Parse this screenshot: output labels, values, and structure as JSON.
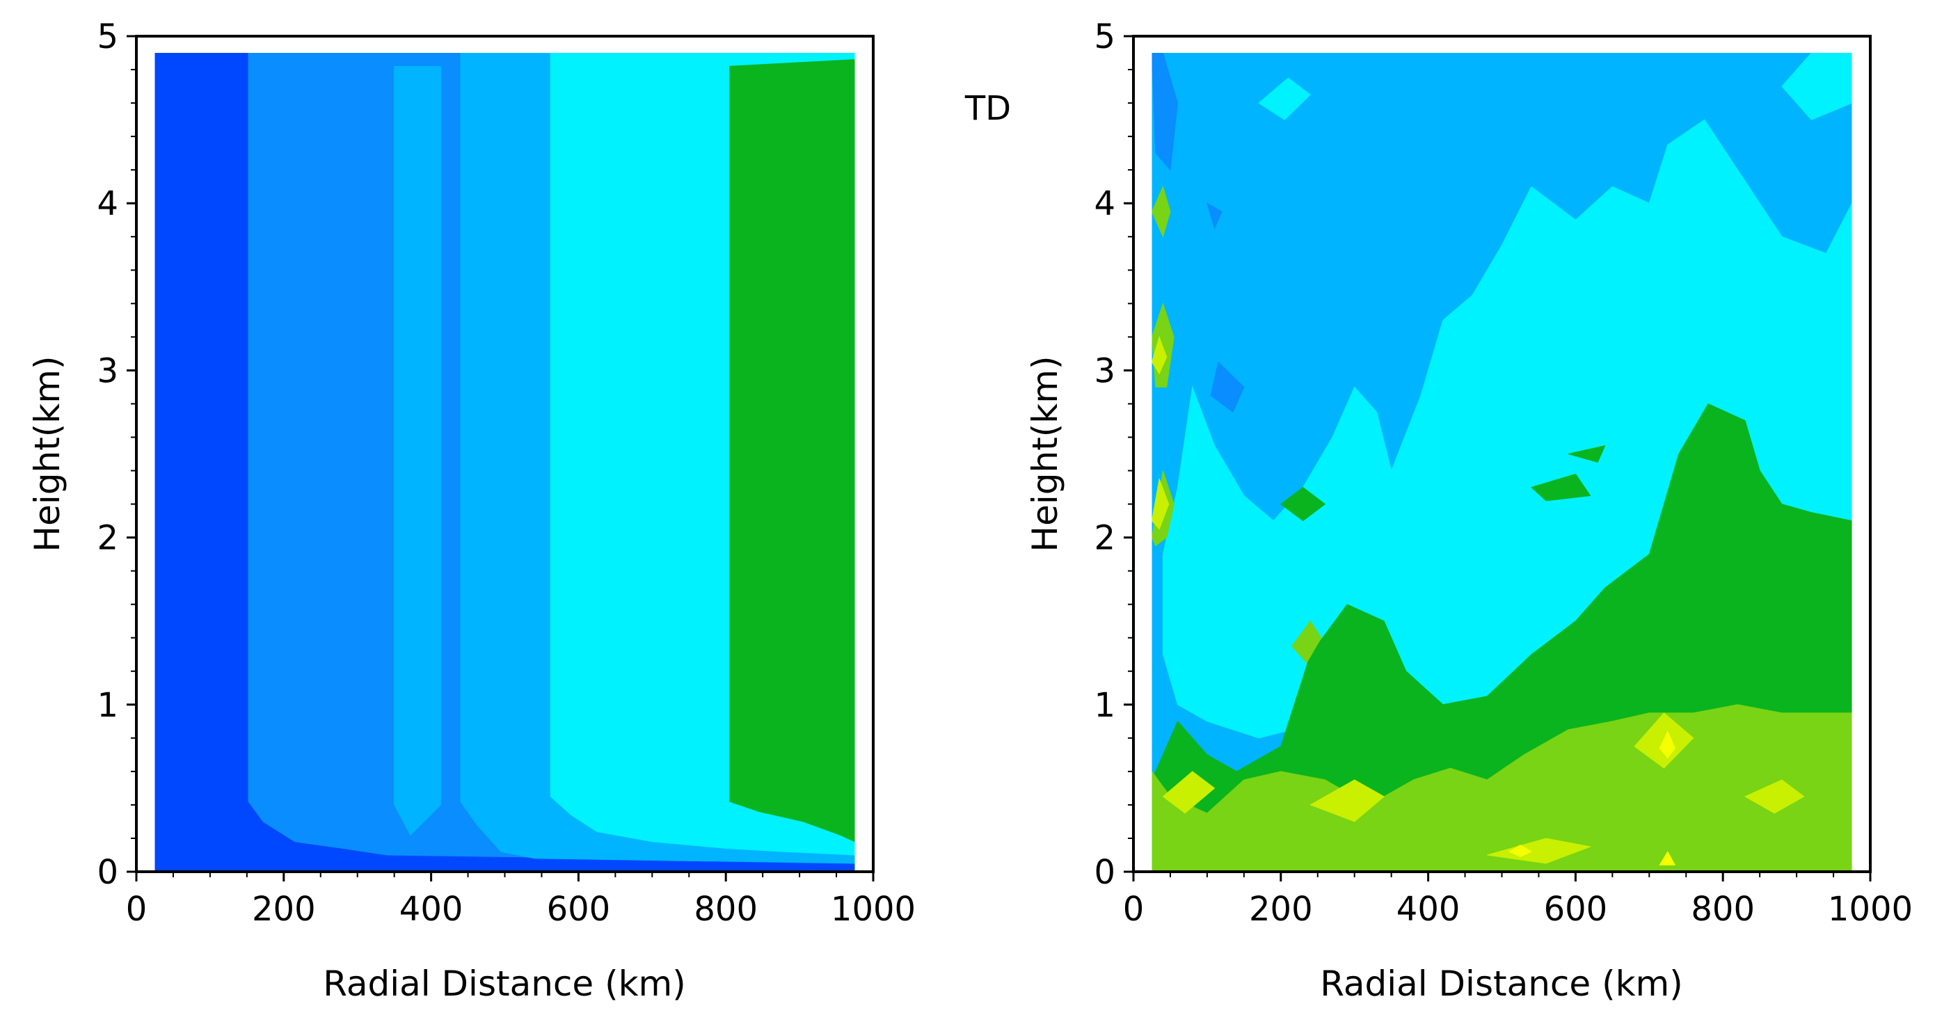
{
  "chart_data": [
    {
      "type": "heatmap",
      "panel": "left",
      "title": "",
      "tag": "",
      "xlabel": "Radial Distance (km)",
      "ylabel": "Height(km)",
      "xlim": [
        0,
        1000
      ],
      "ylim": [
        0,
        5
      ],
      "x_ticks": [
        "0",
        "200",
        "400",
        "600",
        "800",
        "1000"
      ],
      "y_ticks": [
        "0",
        "1",
        "2",
        "3",
        "4",
        "5"
      ],
      "data_extent": {
        "x": [
          25,
          975
        ],
        "y": [
          0,
          4.9
        ]
      },
      "colors": [
        "#0048ff",
        "#0a8dff",
        "#00b4ff",
        "#00f2ff",
        "#0ab41e"
      ],
      "regions": [
        {
          "level": 0,
          "poly": [
            [
              25,
              0
            ],
            [
              975,
              0
            ],
            [
              975,
              4.9
            ],
            [
              25,
              4.9
            ]
          ]
        },
        {
          "level": 1,
          "poly": [
            [
              152,
              4.82
            ],
            [
              152,
              0.42
            ],
            [
              172,
              0.3
            ],
            [
              215,
              0.18
            ],
            [
              280,
              0.14
            ],
            [
              340,
              0.1
            ],
            [
              975,
              0.06
            ],
            [
              975,
              4.9
            ],
            [
              152,
              4.9
            ]
          ]
        },
        {
          "level": 2,
          "poly": [
            [
              350,
              4.82
            ],
            [
              350,
              0.4
            ],
            [
              372,
              0.22
            ],
            [
              413,
              0.4
            ],
            [
              413,
              4.82
            ]
          ]
        },
        {
          "level": 2,
          "poly": [
            [
              440,
              4.82
            ],
            [
              440,
              0.42
            ],
            [
              462,
              0.28
            ],
            [
              495,
              0.12
            ],
            [
              540,
              0.08
            ],
            [
              975,
              0.05
            ],
            [
              975,
              4.9
            ],
            [
              440,
              4.9
            ]
          ]
        },
        {
          "level": 3,
          "poly": [
            [
              562,
              4.82
            ],
            [
              562,
              0.45
            ],
            [
              590,
              0.34
            ],
            [
              625,
              0.24
            ],
            [
              700,
              0.18
            ],
            [
              800,
              0.14
            ],
            [
              880,
              0.12
            ],
            [
              975,
              0.1
            ],
            [
              975,
              4.9
            ],
            [
              562,
              4.9
            ]
          ]
        },
        {
          "level": 4,
          "poly": [
            [
              805,
              4.82
            ],
            [
              805,
              0.42
            ],
            [
              845,
              0.36
            ],
            [
              905,
              0.3
            ],
            [
              955,
              0.22
            ],
            [
              975,
              0.18
            ],
            [
              975,
              4.86
            ]
          ]
        }
      ]
    },
    {
      "type": "heatmap",
      "panel": "right",
      "title": "",
      "tag": "TD",
      "xlabel": "Radial Distance (km)",
      "ylabel": "Height(km)",
      "xlim": [
        0,
        1000
      ],
      "ylim": [
        0,
        5
      ],
      "x_ticks": [
        "0",
        "200",
        "400",
        "600",
        "800",
        "1000"
      ],
      "y_ticks": [
        "0",
        "1",
        "2",
        "3",
        "4",
        "5"
      ],
      "data_extent": {
        "x": [
          25,
          975
        ],
        "y": [
          0,
          4.9
        ]
      },
      "colors": [
        "#0048ff",
        "#0a8dff",
        "#00b4ff",
        "#00f2ff",
        "#0ab41e",
        "#78d414",
        "#c8f000",
        "#f5ff00"
      ],
      "regions": [
        {
          "level": 2,
          "poly": [
            [
              25,
              0
            ],
            [
              975,
              0
            ],
            [
              975,
              4.9
            ],
            [
              25,
              4.9
            ]
          ]
        },
        {
          "level": 3,
          "poly": [
            [
              975,
              4.0
            ],
            [
              940,
              3.7
            ],
            [
              880,
              3.8
            ],
            [
              820,
              4.2
            ],
            [
              775,
              4.5
            ],
            [
              725,
              4.35
            ],
            [
              700,
              4.0
            ],
            [
              650,
              4.1
            ],
            [
              600,
              3.9
            ],
            [
              540,
              4.1
            ],
            [
              500,
              3.75
            ],
            [
              460,
              3.45
            ],
            [
              420,
              3.3
            ],
            [
              390,
              2.85
            ],
            [
              350,
              2.4
            ],
            [
              330,
              2.75
            ],
            [
              300,
              2.9
            ],
            [
              270,
              2.6
            ],
            [
              230,
              2.3
            ],
            [
              190,
              2.1
            ],
            [
              150,
              2.25
            ],
            [
              110,
              2.55
            ],
            [
              80,
              2.9
            ],
            [
              60,
              2.3
            ],
            [
              40,
              1.9
            ],
            [
              40,
              1.3
            ],
            [
              60,
              1.0
            ],
            [
              100,
              0.9
            ],
            [
              170,
              0.8
            ],
            [
              260,
              0.9
            ],
            [
              330,
              1.0
            ],
            [
              380,
              0.85
            ],
            [
              420,
              0.95
            ],
            [
              470,
              1.0
            ],
            [
              530,
              0.95
            ],
            [
              600,
              1.05
            ],
            [
              680,
              1.1
            ],
            [
              760,
              1.2
            ],
            [
              830,
              1.3
            ],
            [
              900,
              1.5
            ],
            [
              975,
              1.6
            ]
          ]
        },
        {
          "level": 3,
          "poly": [
            [
              975,
              4.9
            ],
            [
              975,
              4.6
            ],
            [
              920,
              4.5
            ],
            [
              880,
              4.7
            ],
            [
              920,
              4.9
            ]
          ]
        },
        {
          "level": 3,
          "poly": [
            [
              170,
              4.6
            ],
            [
              210,
              4.75
            ],
            [
              240,
              4.65
            ],
            [
              205,
              4.5
            ]
          ]
        },
        {
          "level": 1,
          "poly": [
            [
              40,
              4.9
            ],
            [
              60,
              4.6
            ],
            [
              50,
              4.2
            ],
            [
              30,
              4.3
            ],
            [
              25,
              4.9
            ]
          ]
        },
        {
          "level": 1,
          "poly": [
            [
              115,
              3.05
            ],
            [
              150,
              2.9
            ],
            [
              135,
              2.75
            ],
            [
              105,
              2.85
            ]
          ]
        },
        {
          "level": 1,
          "poly": [
            [
              100,
              4.0
            ],
            [
              120,
              3.95
            ],
            [
              110,
              3.85
            ]
          ]
        },
        {
          "level": 4,
          "poly": [
            [
              25,
              0.55
            ],
            [
              60,
              0.9
            ],
            [
              100,
              0.7
            ],
            [
              140,
              0.6
            ],
            [
              200,
              0.75
            ],
            [
              240,
              1.3
            ],
            [
              290,
              1.6
            ],
            [
              340,
              1.5
            ],
            [
              370,
              1.2
            ],
            [
              420,
              1.0
            ],
            [
              480,
              1.05
            ],
            [
              540,
              1.3
            ],
            [
              600,
              1.5
            ],
            [
              640,
              1.7
            ],
            [
              700,
              1.9
            ],
            [
              740,
              2.5
            ],
            [
              780,
              2.8
            ],
            [
              830,
              2.7
            ],
            [
              850,
              2.4
            ],
            [
              880,
              2.2
            ],
            [
              920,
              2.15
            ],
            [
              975,
              2.1
            ],
            [
              975,
              0
            ],
            [
              25,
              0
            ]
          ]
        },
        {
          "level": 4,
          "poly": [
            [
              200,
              2.2
            ],
            [
              230,
              2.3
            ],
            [
              260,
              2.2
            ],
            [
              230,
              2.1
            ]
          ]
        },
        {
          "level": 4,
          "poly": [
            [
              590,
              2.5
            ],
            [
              640,
              2.55
            ],
            [
              630,
              2.45
            ]
          ]
        },
        {
          "level": 4,
          "poly": [
            [
              540,
              2.3
            ],
            [
              600,
              2.38
            ],
            [
              620,
              2.25
            ],
            [
              560,
              2.22
            ]
          ]
        },
        {
          "level": 5,
          "poly": [
            [
              25,
              0.05
            ],
            [
              25,
              0.6
            ],
            [
              50,
              0.45
            ],
            [
              100,
              0.35
            ],
            [
              150,
              0.55
            ],
            [
              200,
              0.6
            ],
            [
              260,
              0.55
            ],
            [
              320,
              0.4
            ],
            [
              380,
              0.55
            ],
            [
              430,
              0.62
            ],
            [
              480,
              0.55
            ],
            [
              530,
              0.7
            ],
            [
              590,
              0.85
            ],
            [
              650,
              0.9
            ],
            [
              700,
              0.95
            ],
            [
              760,
              0.95
            ],
            [
              820,
              1.0
            ],
            [
              880,
              0.95
            ],
            [
              975,
              0.95
            ],
            [
              975,
              0
            ],
            [
              25,
              0
            ]
          ]
        },
        {
          "level": 5,
          "poly": [
            [
              25,
              3.2
            ],
            [
              40,
              3.4
            ],
            [
              55,
              3.2
            ],
            [
              45,
              2.9
            ],
            [
              30,
              2.9
            ]
          ]
        },
        {
          "level": 5,
          "poly": [
            [
              25,
              2.0
            ],
            [
              40,
              2.4
            ],
            [
              55,
              2.2
            ],
            [
              45,
              2.0
            ],
            [
              30,
              1.95
            ]
          ]
        },
        {
          "level": 5,
          "poly": [
            [
              25,
              3.95
            ],
            [
              40,
              4.1
            ],
            [
              50,
              3.95
            ],
            [
              40,
              3.8
            ]
          ]
        },
        {
          "level": 5,
          "poly": [
            [
              215,
              1.35
            ],
            [
              240,
              1.5
            ],
            [
              255,
              1.4
            ],
            [
              235,
              1.25
            ]
          ]
        },
        {
          "level": 6,
          "poly": [
            [
              40,
              0.45
            ],
            [
              80,
              0.6
            ],
            [
              110,
              0.5
            ],
            [
              70,
              0.35
            ]
          ]
        },
        {
          "level": 6,
          "poly": [
            [
              240,
              0.4
            ],
            [
              300,
              0.55
            ],
            [
              340,
              0.45
            ],
            [
              300,
              0.3
            ]
          ]
        },
        {
          "level": 6,
          "poly": [
            [
              480,
              0.1
            ],
            [
              560,
              0.2
            ],
            [
              620,
              0.15
            ],
            [
              560,
              0.05
            ]
          ]
        },
        {
          "level": 6,
          "poly": [
            [
              680,
              0.75
            ],
            [
              720,
              0.95
            ],
            [
              760,
              0.8
            ],
            [
              720,
              0.62
            ]
          ]
        },
        {
          "level": 6,
          "poly": [
            [
              830,
              0.45
            ],
            [
              880,
              0.55
            ],
            [
              910,
              0.45
            ],
            [
              870,
              0.35
            ]
          ]
        },
        {
          "level": 6,
          "poly": [
            [
              25,
              2.1
            ],
            [
              35,
              2.35
            ],
            [
              48,
              2.2
            ],
            [
              35,
              2.05
            ]
          ]
        },
        {
          "level": 6,
          "poly": [
            [
              25,
              3.05
            ],
            [
              35,
              3.2
            ],
            [
              45,
              3.08
            ],
            [
              35,
              2.98
            ]
          ]
        },
        {
          "level": 7,
          "poly": [
            [
              714,
              0.74
            ],
            [
              725,
              0.84
            ],
            [
              735,
              0.74
            ],
            [
              725,
              0.68
            ]
          ]
        },
        {
          "level": 7,
          "poly": [
            [
              714,
              0.04
            ],
            [
              725,
              0.12
            ],
            [
              735,
              0.04
            ]
          ]
        },
        {
          "level": 7,
          "poly": [
            [
              510,
              0.12
            ],
            [
              525,
              0.16
            ],
            [
              540,
              0.12
            ],
            [
              525,
              0.09
            ]
          ]
        }
      ]
    }
  ]
}
